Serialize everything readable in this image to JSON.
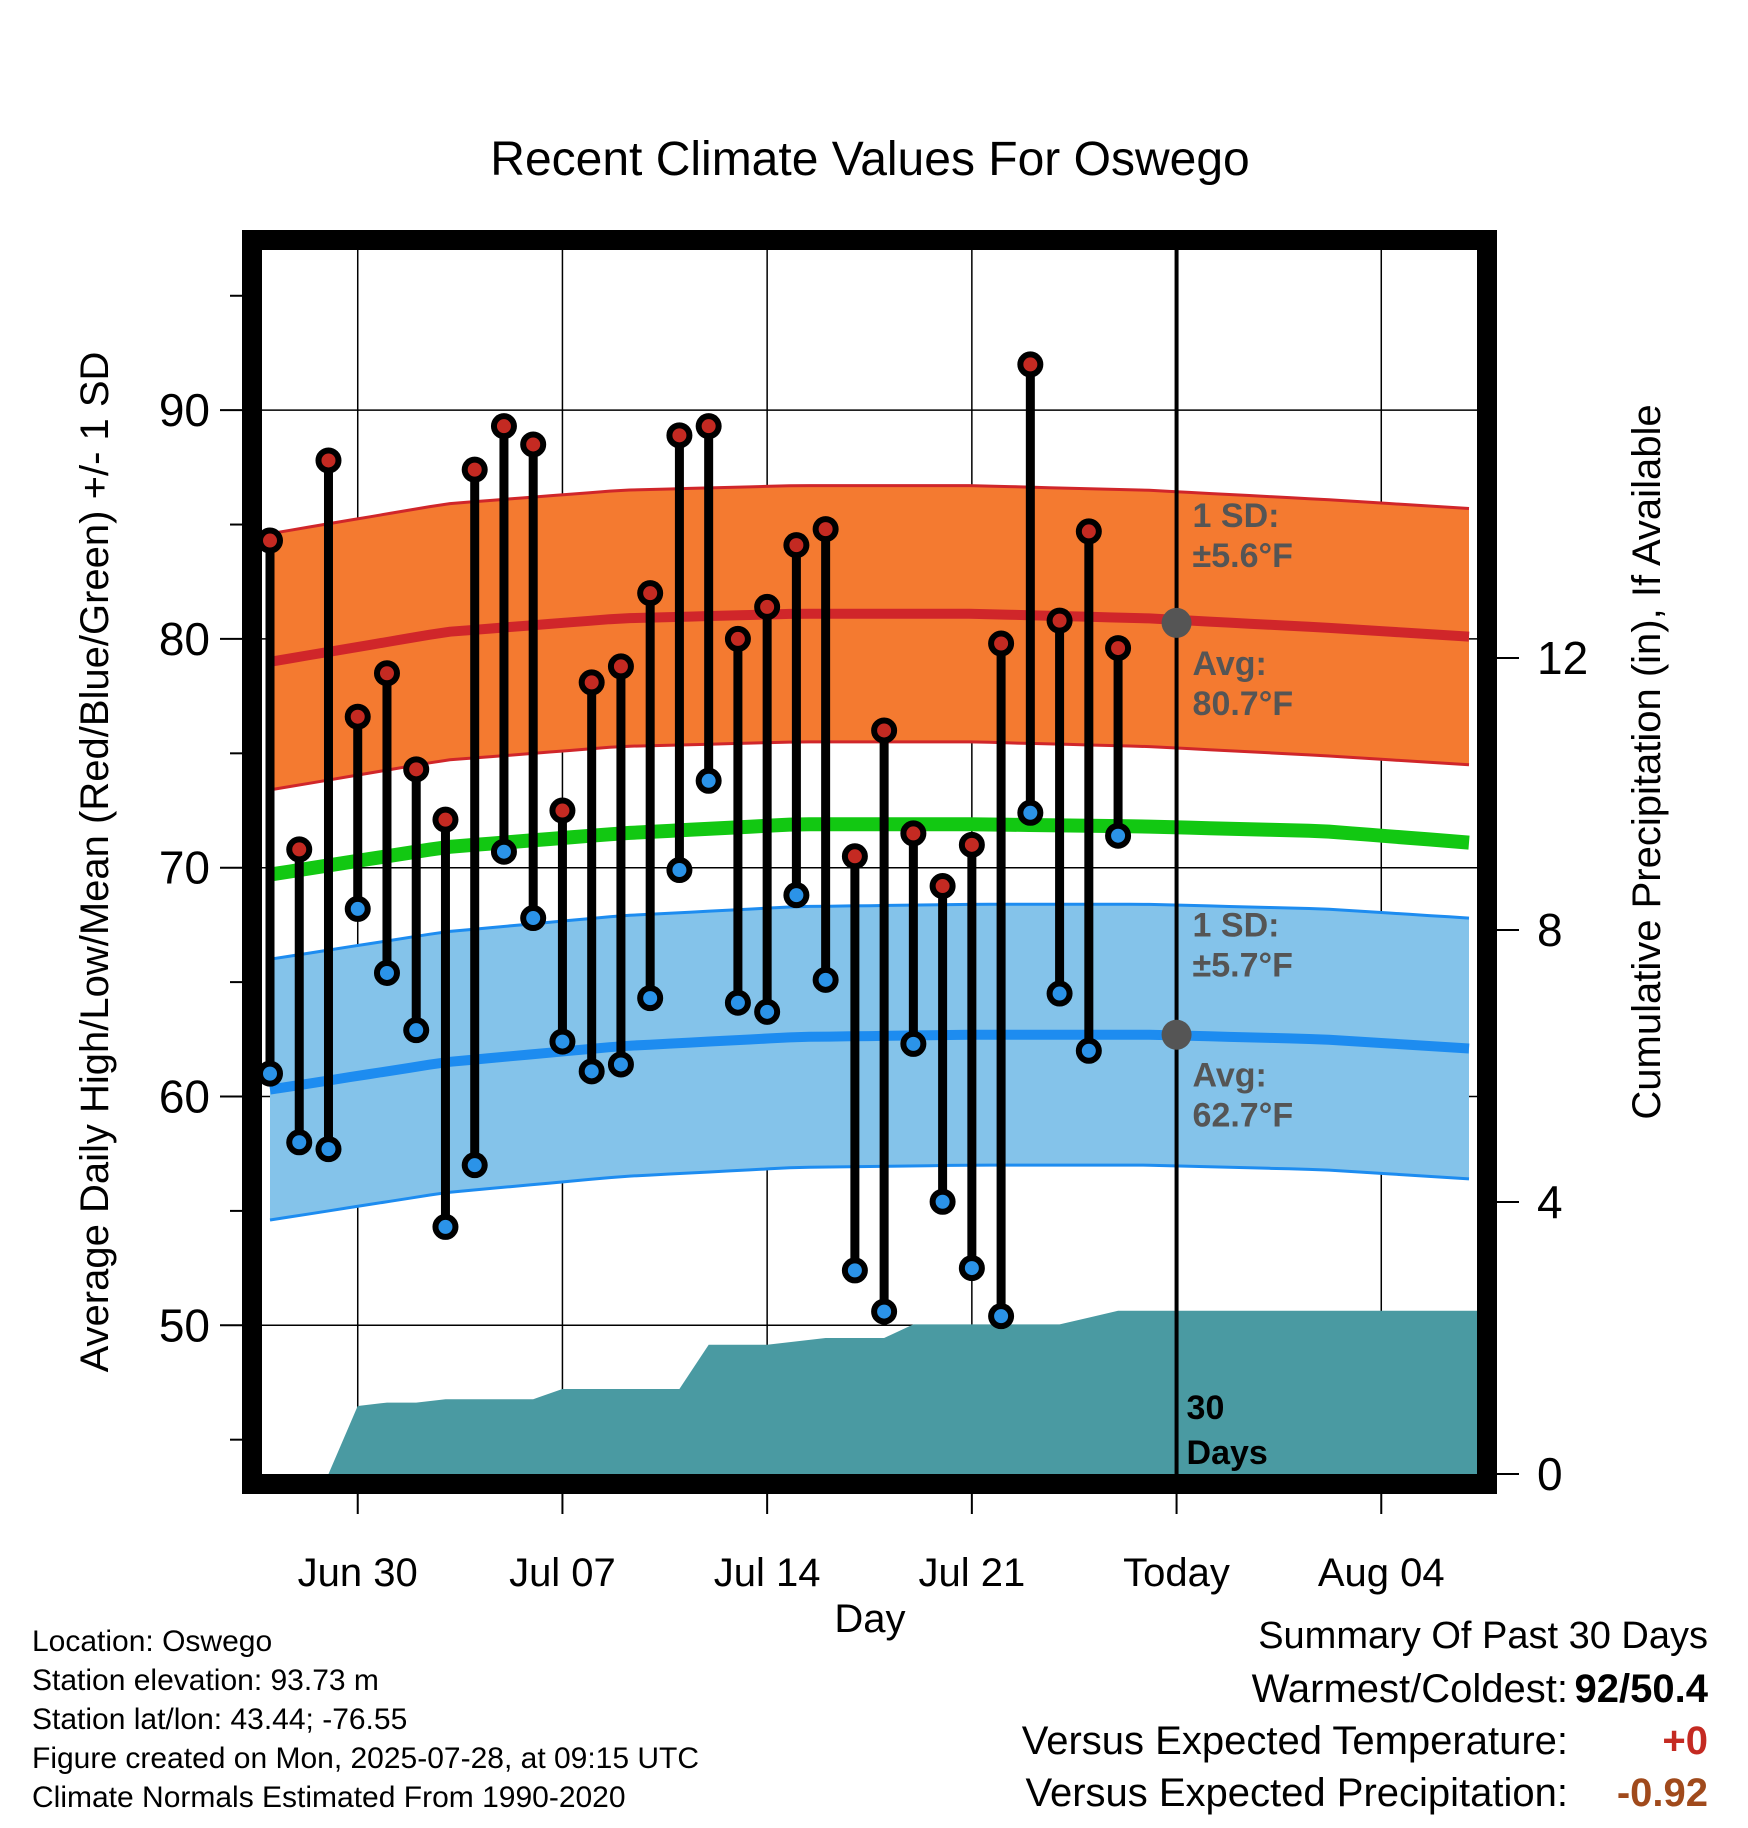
{
  "chart_data": {
    "type": "line",
    "title": "Recent Climate Values For Oswego",
    "xlabel": "Day",
    "ylabel": "Average Daily High/Low/Mean (Red/Blue/Green) +/- 1 SD",
    "y2label": "Cumulative Precipitation (in), If Available",
    "ylim": [
      43.5,
      97
    ],
    "y2lim": [
      0,
      18
    ],
    "x_day_range": [
      "Jun 27",
      "Aug 07"
    ],
    "x_tick_labels": [
      "Jun 30",
      "Jul 07",
      "Jul 14",
      "Jul 21",
      "Today",
      "Aug 04"
    ],
    "y_ticks": [
      50,
      60,
      70,
      80,
      90
    ],
    "y2_ticks": [
      0,
      4,
      8,
      12
    ],
    "today": "Jul 28",
    "grid": true,
    "days": [
      "Jun 27",
      "Jun 28",
      "Jun 29",
      "Jun 30",
      "Jul 01",
      "Jul 02",
      "Jul 03",
      "Jul 04",
      "Jul 05",
      "Jul 06",
      "Jul 07",
      "Jul 08",
      "Jul 09",
      "Jul 10",
      "Jul 11",
      "Jul 12",
      "Jul 13",
      "Jul 14",
      "Jul 15",
      "Jul 16",
      "Jul 17",
      "Jul 18",
      "Jul 19",
      "Jul 20",
      "Jul 21",
      "Jul 22",
      "Jul 23",
      "Jul 24",
      "Jul 25",
      "Jul 26",
      "Jul 27"
    ],
    "series": [
      {
        "name": "High",
        "color": "#c42a22",
        "values": [
          84.3,
          70.8,
          87.8,
          76.6,
          78.5,
          74.3,
          72.1,
          87.4,
          89.3,
          88.5,
          72.5,
          78.1,
          78.8,
          82.0,
          88.9,
          89.3,
          80.0,
          81.4,
          84.1,
          84.8,
          70.5,
          76.0,
          71.5,
          69.2,
          71.0,
          79.8,
          92.0,
          80.8,
          84.7,
          79.6,
          null
        ]
      },
      {
        "name": "Low",
        "color": "#2b93e8",
        "values": [
          61.0,
          58.0,
          57.7,
          68.2,
          65.4,
          62.9,
          54.3,
          57.0,
          70.7,
          67.8,
          62.4,
          61.1,
          61.4,
          64.3,
          69.9,
          73.8,
          64.1,
          63.7,
          68.8,
          65.1,
          52.4,
          50.6,
          62.3,
          55.4,
          52.5,
          50.4,
          72.4,
          64.5,
          62.0,
          71.4,
          null
        ]
      }
    ],
    "normals": {
      "high_avg": [
        79.0,
        80.3,
        80.9,
        81.1,
        81.1,
        80.9,
        80.5,
        80.1
      ],
      "high_sd": 5.6,
      "low_avg": [
        60.3,
        61.5,
        62.2,
        62.6,
        62.7,
        62.7,
        62.5,
        62.1
      ],
      "low_sd": 5.7,
      "mean_avg": [
        69.7,
        70.9,
        71.5,
        71.9,
        71.9,
        71.8,
        71.6,
        71.1
      ],
      "sample_days": [
        "Jun 27",
        "Jul 03",
        "Jul 09",
        "Jul 15",
        "Jul 21",
        "Jul 27",
        "Aug 02",
        "Aug 07"
      ]
    },
    "precipitation": {
      "color": "#4a9aa2",
      "values": [
        0,
        0,
        0,
        1.0,
        1.05,
        1.05,
        1.1,
        1.1,
        1.1,
        1.1,
        1.25,
        1.25,
        1.25,
        1.25,
        1.25,
        1.9,
        1.9,
        1.9,
        1.95,
        2.0,
        2.0,
        2.0,
        2.2,
        2.2,
        2.2,
        2.2,
        2.2,
        2.2,
        2.3,
        2.4,
        2.4
      ],
      "extends_to": "Aug 07"
    },
    "annotations": {
      "high_sd_label": "1 SD:",
      "high_sd_value": "±5.6°F",
      "high_avg_label": "Avg:",
      "high_avg_value": "80.7°F",
      "low_sd_label": "1 SD:",
      "low_sd_value": "±5.7°F",
      "low_avg_label": "Avg:",
      "low_avg_value": "62.7°F",
      "precip_days_1": "30",
      "precip_days_2": "Days"
    },
    "colors": {
      "high_band": "#f47a30",
      "high_line": "#d0262a",
      "low_band": "#84c3ea",
      "low_line": "#1d8cf0",
      "mean_line": "#12c812"
    }
  },
  "footer": {
    "location": "Location: Oswego",
    "elevation": "Station elevation: 93.73 m",
    "latlon": "Station lat/lon: 43.44; -76.55",
    "created": "Figure created on Mon, 2025-07-28, at 09:15 UTC",
    "normals": "Climate Normals Estimated From 1990-2020"
  },
  "summary": {
    "title": "Summary Of Past 30 Days",
    "warm_cold_label": "Warmest/Coldest:",
    "warm_cold_value": "92/50.4",
    "temp_label": "Versus Expected Temperature:",
    "temp_value": "+0",
    "temp_color": "#c42a22",
    "precip_label": "Versus Expected Precipitation:",
    "precip_value": "-0.92",
    "precip_color": "#a04a1c"
  }
}
